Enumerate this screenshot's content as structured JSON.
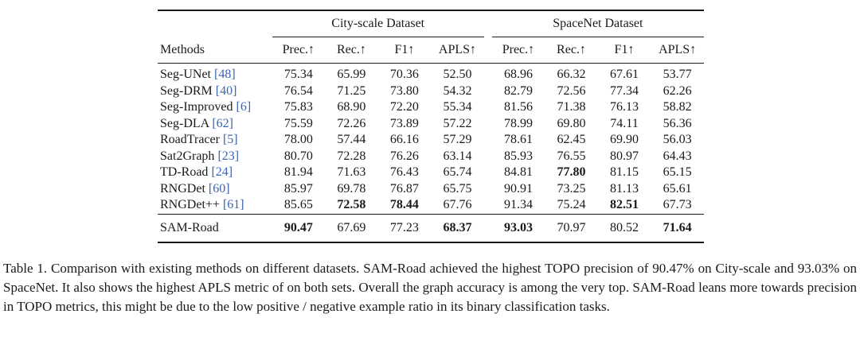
{
  "table": {
    "group_headers": [
      "City-scale Dataset",
      "SpaceNet Dataset"
    ],
    "method_header": "Methods",
    "metric_headers": [
      "Prec.↑",
      "Rec.↑",
      "F1↑",
      "APLS↑"
    ],
    "rows": [
      {
        "name": "Seg-UNet ",
        "ref": "[48]",
        "city": [
          "75.34",
          "65.99",
          "70.36",
          "52.50"
        ],
        "space": [
          "68.96",
          "66.32",
          "67.61",
          "53.77"
        ]
      },
      {
        "name": "Seg-DRM ",
        "ref": "[40]",
        "city": [
          "76.54",
          "71.25",
          "73.80",
          "54.32"
        ],
        "space": [
          "82.79",
          "72.56",
          "77.34",
          "62.26"
        ]
      },
      {
        "name": "Seg-Improved ",
        "ref": "[6]",
        "city": [
          "75.83",
          "68.90",
          "72.20",
          "55.34"
        ],
        "space": [
          "81.56",
          "71.38",
          "76.13",
          "58.82"
        ]
      },
      {
        "name": "Seg-DLA ",
        "ref": "[62]",
        "city": [
          "75.59",
          "72.26",
          "73.89",
          "57.22"
        ],
        "space": [
          "78.99",
          "69.80",
          "74.11",
          "56.36"
        ]
      },
      {
        "name": "RoadTracer ",
        "ref": "[5]",
        "city": [
          "78.00",
          "57.44",
          "66.16",
          "57.29"
        ],
        "space": [
          "78.61",
          "62.45",
          "69.90",
          "56.03"
        ]
      },
      {
        "name": "Sat2Graph ",
        "ref": "[23]",
        "city": [
          "80.70",
          "72.28",
          "76.26",
          "63.14"
        ],
        "space": [
          "85.93",
          "76.55",
          "80.97",
          "64.43"
        ]
      },
      {
        "name": "TD-Road ",
        "ref": "[24]",
        "city": [
          "81.94",
          "71.63",
          "76.43",
          "65.74"
        ],
        "space": [
          "84.81",
          "77.80",
          "81.15",
          "65.15"
        ]
      },
      {
        "name": "RNGDet ",
        "ref": "[60]",
        "city": [
          "85.97",
          "69.78",
          "76.87",
          "65.75"
        ],
        "space": [
          "90.91",
          "73.25",
          "81.13",
          "65.61"
        ]
      },
      {
        "name": "RNGDet++ ",
        "ref": "[61]",
        "city": [
          "85.65",
          "72.58",
          "78.44",
          "67.76"
        ],
        "space": [
          "91.34",
          "75.24",
          "82.51",
          "67.73"
        ]
      }
    ],
    "ours": {
      "name": "SAM-Road",
      "city": [
        "90.47",
        "67.69",
        "77.23",
        "68.37"
      ],
      "space": [
        "93.03",
        "70.97",
        "80.52",
        "71.64"
      ]
    }
  },
  "caption": "Table 1. Comparison with existing methods on different datasets. SAM-Road achieved the highest TOPO precision of 90.47% on City-scale and 93.03% on SpaceNet. It also shows the highest APLS metric of on both sets. Overall the graph accuracy is among the very top. SAM-Road leans more towards precision in TOPO metrics, this might be due to the low positive / negative example ratio in its binary classification tasks."
}
